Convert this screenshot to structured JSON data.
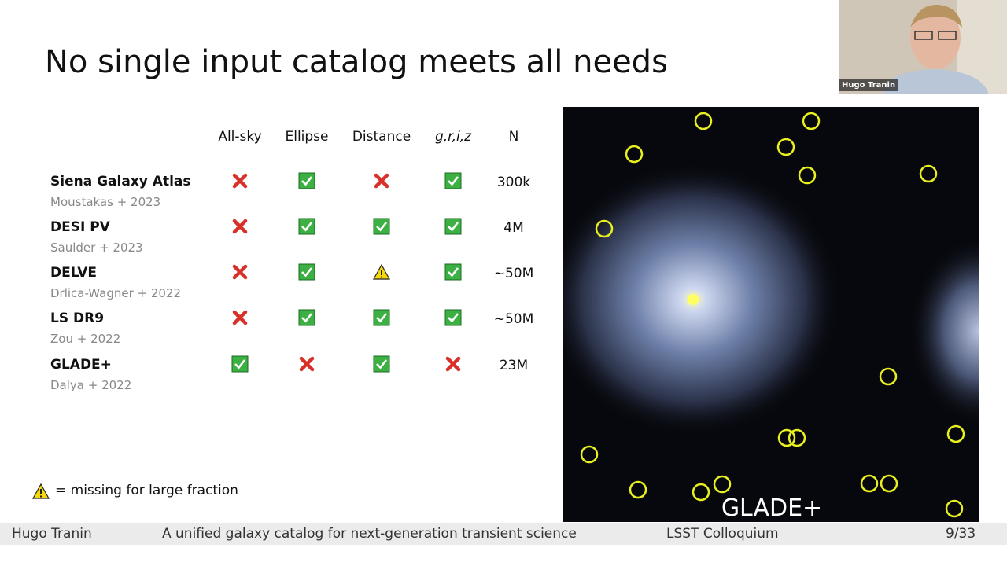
{
  "slide": {
    "title": "No single input catalog meets all needs",
    "table": {
      "headers": [
        "All-sky",
        "Ellipse",
        "Distance",
        "g,r,i,z",
        "N"
      ],
      "rows": [
        {
          "name": "Siena Galaxy Atlas",
          "ref": "Moustakas + 2023",
          "cells": [
            "cross",
            "check",
            "cross",
            "check"
          ],
          "n": "300k"
        },
        {
          "name": "DESI PV",
          "ref": "Saulder + 2023",
          "cells": [
            "cross",
            "check",
            "check",
            "check"
          ],
          "n": "4M"
        },
        {
          "name": "DELVE",
          "ref": "Drlica-Wagner + 2022",
          "cells": [
            "cross",
            "check",
            "warning",
            "check"
          ],
          "n": "~50M"
        },
        {
          "name": "LS DR9",
          "ref": "Zou + 2022",
          "cells": [
            "cross",
            "check",
            "check",
            "check"
          ],
          "n": "~50M"
        },
        {
          "name": "GLADE+",
          "ref": "Dalya + 2022",
          "cells": [
            "check",
            "cross",
            "check",
            "cross"
          ],
          "n": "23M"
        }
      ]
    },
    "legend": "= missing for large fraction",
    "image_label": "GLADE+"
  },
  "video": {
    "name": "Hugo Tranin"
  },
  "footer": {
    "author": "Hugo Tranin",
    "talk": "A unified galaxy catalog for next-generation transient science",
    "venue": "LSST Colloquium",
    "page": "9/33"
  }
}
